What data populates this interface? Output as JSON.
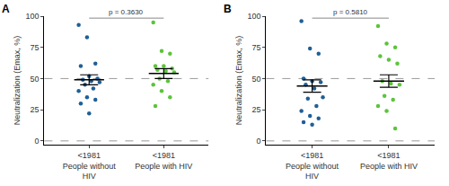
{
  "chart_data": [
    {
      "type": "scatter",
      "panel": "A",
      "ylabel": "Neutralization (Emax, %)",
      "categories": [
        "<1981\nPeople without\nHIV",
        "<1981\nPeople with HIV"
      ],
      "colors": [
        "#1f5f96",
        "#5cc43a"
      ],
      "values": [
        [
          93,
          83,
          62,
          60,
          52,
          50,
          49,
          48,
          47,
          45,
          42,
          40,
          35,
          33,
          30,
          22
        ],
        [
          95,
          72,
          70,
          60,
          60,
          58,
          57,
          56,
          55,
          50,
          48,
          45,
          40,
          35,
          28
        ]
      ],
      "mean": [
        49,
        54
      ],
      "error": [
        4,
        4
      ],
      "ylim": [
        -3,
        100
      ],
      "yticks": [
        0,
        25,
        50,
        75,
        100
      ],
      "hlines": [
        0,
        50
      ],
      "annotations": [
        {
          "text": "p = 0.3630"
        }
      ]
    },
    {
      "type": "scatter",
      "panel": "B",
      "ylabel": "Neutralization (Emax, %)",
      "categories": [
        "<1981\nPeople without\nHIV",
        "<1981\nPeople with HIV"
      ],
      "colors": [
        "#1f5f96",
        "#5cc43a"
      ],
      "values": [
        [
          96,
          74,
          70,
          50,
          48,
          47,
          45,
          42,
          35,
          34,
          28,
          24,
          20,
          18,
          15,
          13
        ],
        [
          92,
          78,
          75,
          68,
          65,
          62,
          48,
          46,
          45,
          36,
          33,
          28,
          24,
          10
        ]
      ],
      "mean": [
        44,
        48
      ],
      "error": [
        5,
        5
      ],
      "ylim": [
        -3,
        100
      ],
      "yticks": [
        0,
        25,
        50,
        75,
        100
      ],
      "hlines": [
        0,
        50
      ],
      "annotations": [
        {
          "text": "p = 0.5810"
        }
      ]
    }
  ]
}
